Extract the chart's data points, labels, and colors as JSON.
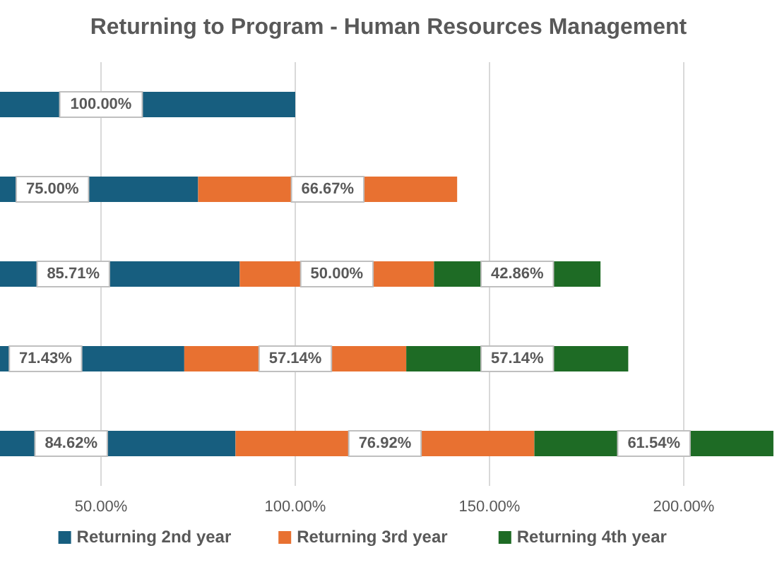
{
  "chart_data": {
    "type": "bar",
    "orientation": "horizontal",
    "stacked": true,
    "title": "Returning to Program - Human Resources Management",
    "categories": [
      null,
      null,
      null,
      null,
      null
    ],
    "series": [
      {
        "name": "Returning 2nd year",
        "color": "#175e7f",
        "values": [
          100,
          75,
          85.71,
          71.43,
          84.62
        ],
        "value_labels": [
          "100.00%",
          "75.00%",
          "85.71%",
          "71.43%",
          "84.62%"
        ]
      },
      {
        "name": "Returning 3rd year",
        "color": "#e87131",
        "values": [
          null,
          66.67,
          50,
          57.14,
          76.92
        ],
        "value_labels": [
          null,
          "66.67%",
          "50.00%",
          "57.14%",
          "76.92%"
        ]
      },
      {
        "name": "Returning 4th year",
        "color": "#1e6b25",
        "values": [
          null,
          null,
          42.86,
          57.14,
          61.54
        ],
        "value_labels": [
          null,
          null,
          "42.86%",
          "57.14%",
          "61.54%"
        ]
      }
    ],
    "xlim": [
      24,
      224
    ],
    "xticks": [
      {
        "value": 50,
        "label": "50.00%"
      },
      {
        "value": 100,
        "label": "100.00%"
      },
      {
        "value": 150,
        "label": "150.00%"
      },
      {
        "value": 200,
        "label": "200.00%"
      }
    ],
    "grid": "x",
    "legend": "bottom"
  }
}
